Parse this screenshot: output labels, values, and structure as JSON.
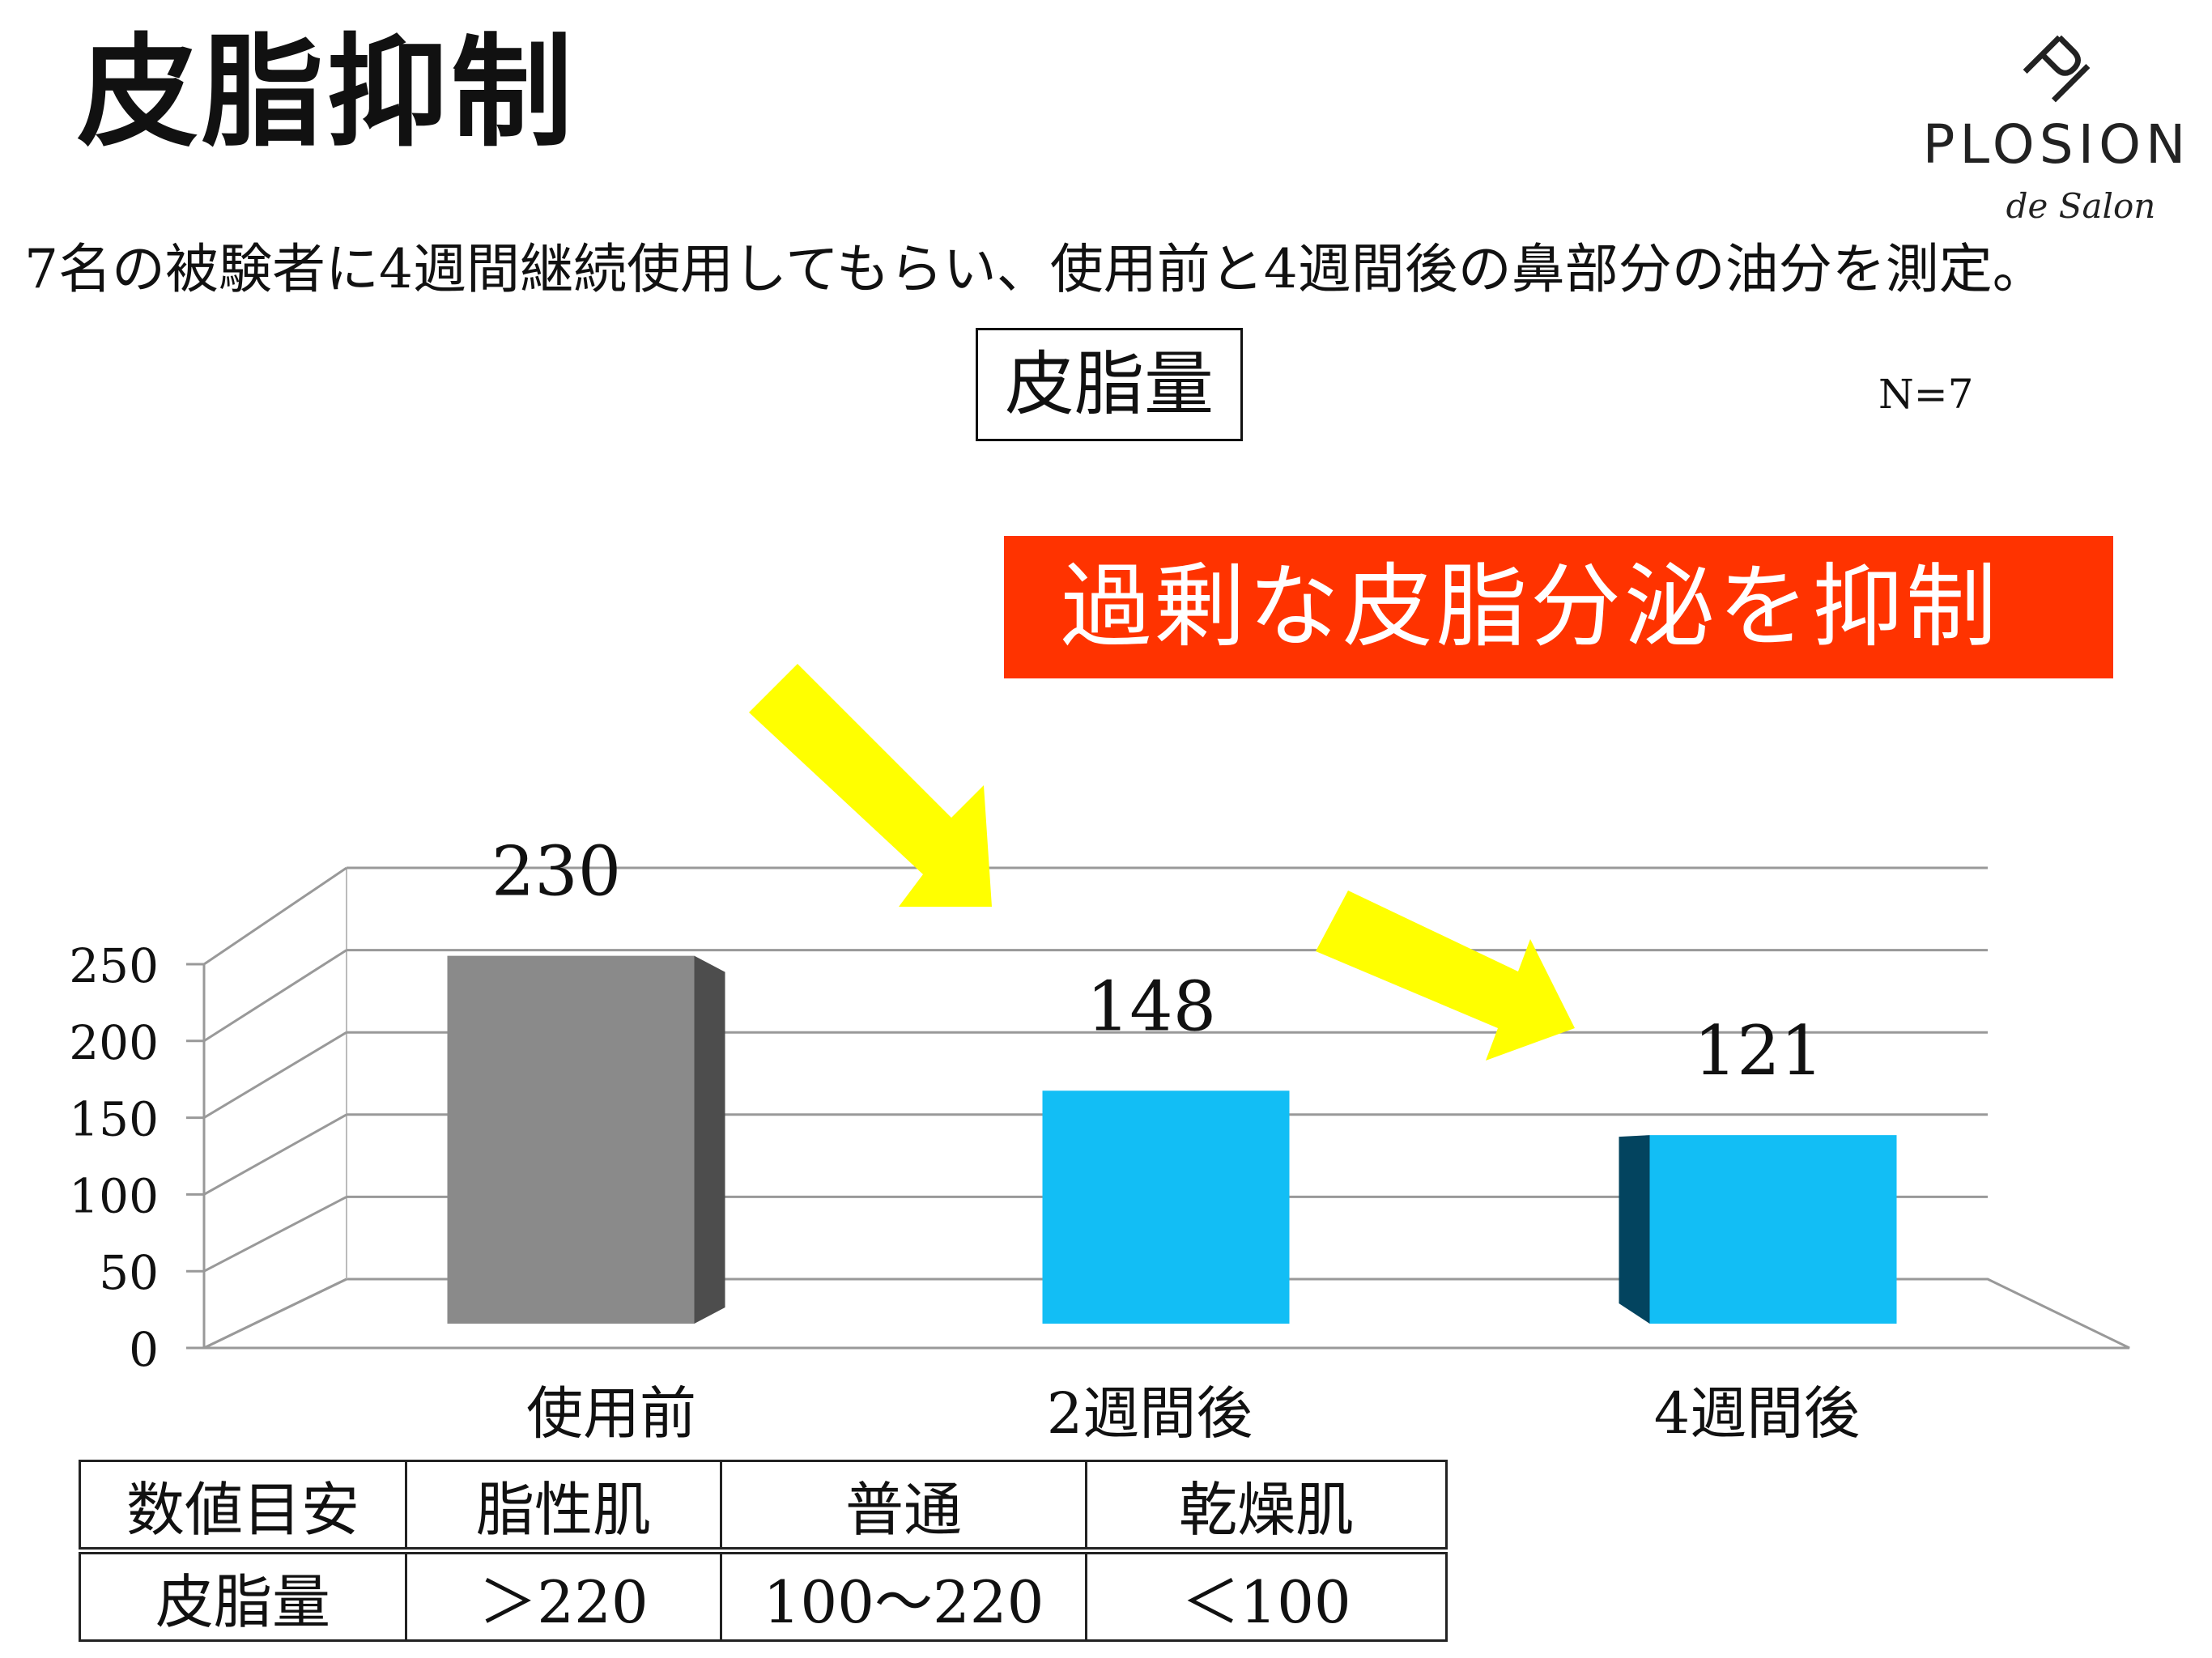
{
  "page": {
    "title": "皮脂抑制",
    "subtitle": "7名の被験者に4週間継続使用してもらい、使用前と4週間後の鼻部分の油分を測定。"
  },
  "logo": {
    "name": "PLOSION",
    "sub": "de Salon"
  },
  "callout": "過剰な皮脂分泌を抑制",
  "chart_data": {
    "type": "bar",
    "title": "皮脂量",
    "note": "N=7",
    "categories": [
      "使用前",
      "2週間後",
      "4週間後"
    ],
    "values": [
      230,
      148,
      121
    ],
    "ylim": [
      0,
      250
    ],
    "yticks": [
      0,
      50,
      100,
      150,
      200,
      250
    ],
    "grid": true,
    "colors": [
      "#8a8a8a",
      "#12bef5",
      "#12bef5"
    ]
  },
  "reference_table": {
    "header": [
      "数値目安",
      "脂性肌",
      "普通",
      "乾燥肌"
    ],
    "row": [
      "皮脂量",
      "＞220",
      "100～220",
      "＜100"
    ]
  }
}
